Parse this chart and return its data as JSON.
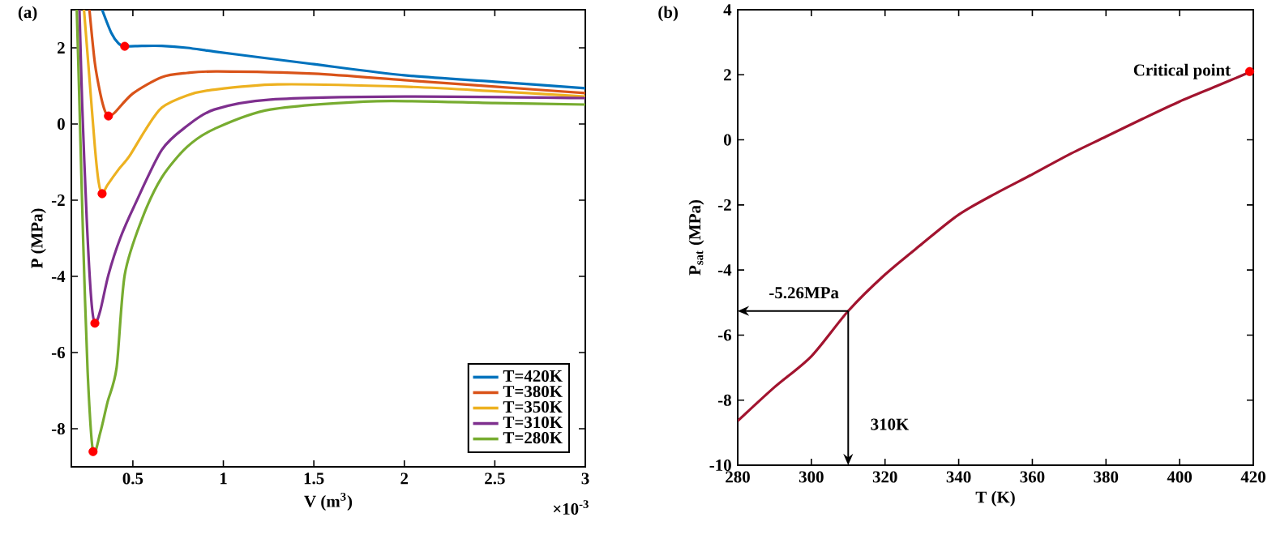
{
  "chart_data": [
    {
      "type": "line",
      "title": "(a)",
      "xlabel": "V (m$^{3}$)",
      "ylabel": "P (MPa)",
      "xlim": [
        0.16,
        3
      ],
      "ylim": [
        -9,
        3
      ],
      "xticks": [
        0.5,
        1,
        1.5,
        2,
        2.5,
        3
      ],
      "yticks": [
        -8,
        -6,
        -4,
        -2,
        0,
        2
      ],
      "legend": "bottom right",
      "annotations": [
        "×10$^{-3}$"
      ],
      "series": [
        {
          "name": "T=420K",
          "color": "#0072bd",
          "x": [
            0.33,
            0.38,
            0.42,
            0.455,
            0.55,
            0.66,
            0.8,
            0.95,
            1.2,
            1.5,
            2.0,
            2.5,
            3.0
          ],
          "values": [
            3,
            2.4,
            2.12,
            2.04,
            2.05,
            2.05,
            2.0,
            1.9,
            1.75,
            1.57,
            1.28,
            1.11,
            0.94
          ]
        },
        {
          "name": "T=380K",
          "color": "#d95319",
          "x": [
            0.26,
            0.29,
            0.32,
            0.345,
            0.365,
            0.4,
            0.5,
            0.66,
            0.8,
            0.97,
            1.5,
            2.0,
            2.5,
            3.0
          ],
          "values": [
            3,
            1.6,
            0.8,
            0.35,
            0.21,
            0.3,
            0.8,
            1.23,
            1.34,
            1.38,
            1.32,
            1.15,
            0.98,
            0.81
          ]
        },
        {
          "name": "T=350K",
          "color": "#edb120",
          "x": [
            0.23,
            0.26,
            0.29,
            0.31,
            0.33,
            0.36,
            0.42,
            0.48,
            0.57,
            0.66,
            0.8,
            0.93,
            1.3,
            2.0,
            2.5,
            3.0
          ],
          "values": [
            3,
            1.2,
            -0.6,
            -1.5,
            -1.83,
            -1.6,
            -1.2,
            -0.85,
            -0.15,
            0.43,
            0.75,
            0.89,
            1.04,
            0.98,
            0.86,
            0.72
          ]
        },
        {
          "name": "T=310K",
          "color": "#7e2f8e",
          "x": [
            0.205,
            0.22,
            0.245,
            0.27,
            0.29,
            0.32,
            0.365,
            0.43,
            0.51,
            0.66,
            0.8,
            0.95,
            1.26,
            2.0,
            3.0
          ],
          "values": [
            3,
            0.5,
            -2.5,
            -4.6,
            -5.23,
            -4.9,
            -3.96,
            -3.0,
            -2.13,
            -0.68,
            -0.05,
            0.38,
            0.64,
            0.72,
            0.68
          ]
        },
        {
          "name": "T=280K",
          "color": "#77ac30",
          "x": [
            0.19,
            0.205,
            0.225,
            0.25,
            0.28,
            0.32,
            0.36,
            0.41,
            0.455,
            0.55,
            0.66,
            0.8,
            0.95,
            1.26,
            1.85,
            2.5,
            3.0
          ],
          "values": [
            3,
            0.5,
            -3.0,
            -6.5,
            -8.6,
            -8.1,
            -7.3,
            -6.4,
            -3.96,
            -2.5,
            -1.4,
            -0.6,
            -0.13,
            0.38,
            0.6,
            0.55,
            0.51
          ]
        },
        {
          "type": "scatter",
          "marker": "circle",
          "color": "#ff0000",
          "x": [
            0.455,
            0.365,
            0.33,
            0.29,
            0.28
          ],
          "values": [
            2.04,
            0.21,
            -1.83,
            -5.23,
            -8.6
          ]
        }
      ]
    },
    {
      "type": "line",
      "title": "(b)",
      "xlabel": "T (K)",
      "ylabel": "P$_{sat}$ (MPa)",
      "xlim": [
        280,
        420
      ],
      "ylim": [
        -10,
        4
      ],
      "xticks": [
        280,
        300,
        320,
        340,
        360,
        380,
        400,
        420
      ],
      "yticks": [
        -10,
        -8,
        -6,
        -4,
        -2,
        0,
        2,
        4
      ],
      "annotations": [
        {
          "text": "-5.26MPa",
          "x": 310,
          "y": -5.26
        },
        "310K",
        {
          "text": "Critical point",
          "x": 419,
          "y": 2.1
        }
      ],
      "series": [
        {
          "color": "#a2142f",
          "x": [
            280,
            290,
            300,
            310,
            320,
            330,
            340,
            350,
            360,
            370,
            380,
            390,
            400,
            410,
            419
          ],
          "values": [
            -8.64,
            -7.6,
            -6.65,
            -5.26,
            -4.14,
            -3.2,
            -2.3,
            -1.65,
            -1.06,
            -0.45,
            0.1,
            0.65,
            1.18,
            1.65,
            2.08
          ]
        },
        {
          "type": "scatter",
          "marker": "circle",
          "color": "#ff0000",
          "x": [
            419
          ],
          "values": [
            2.1
          ]
        }
      ]
    }
  ]
}
